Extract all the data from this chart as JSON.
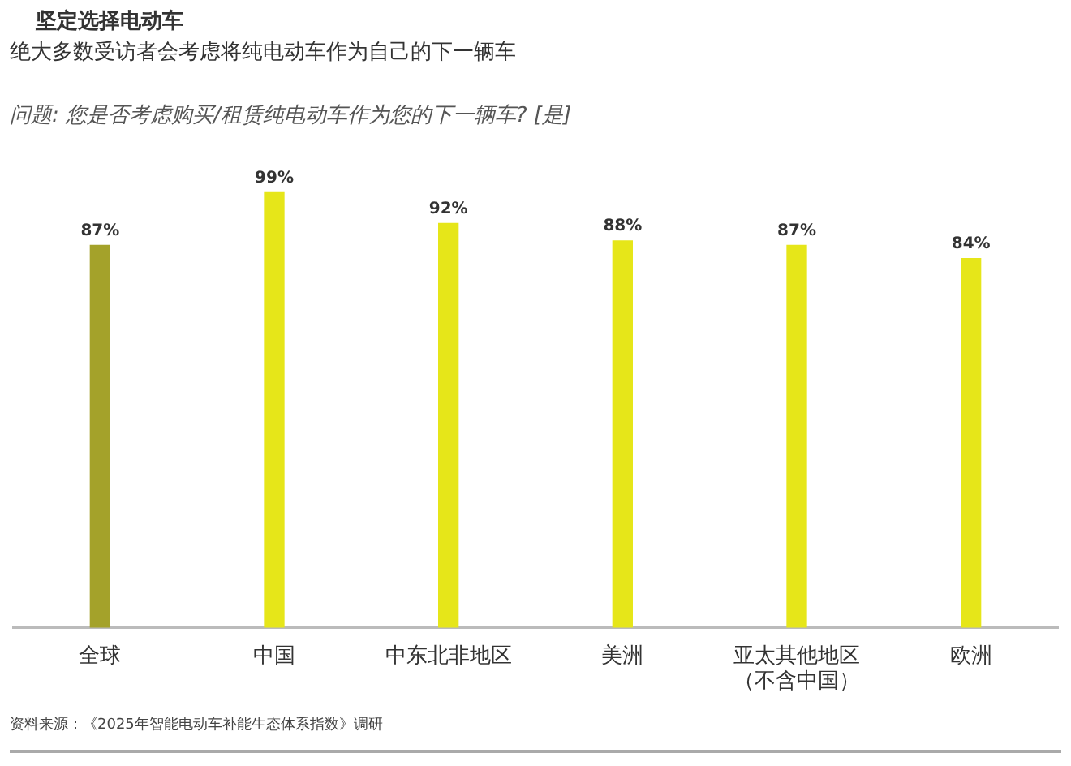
{
  "chart_data": {
    "type": "bar",
    "title": "坚定选择电动车",
    "subtitle": "绝大多数受访者会考虑将纯电动车作为自己的下一辆车",
    "annotations": [
      "问题: 您是否考虑购买/租赁纯电动车作为您的下一辆车? [是]",
      "资料来源：《2025年智能电动车补能生态体系指数》调研"
    ],
    "categories": [
      "全球",
      "中国",
      "中东北非地区",
      "美洲",
      "亚太其他地区（不含中国）",
      "欧洲"
    ],
    "values": [
      87,
      99,
      92,
      88,
      87,
      84
    ],
    "colors": [
      "#a4a22a",
      "#e6e619",
      "#e6e619",
      "#e6e619",
      "#e6e619",
      "#e6e619"
    ],
    "value_labels": [
      "87%",
      "99%",
      "92%",
      "88%",
      "87%",
      "84%"
    ],
    "ylim": [
      0,
      100
    ],
    "tick_labels": "x",
    "grid": false,
    "legend": false
  }
}
